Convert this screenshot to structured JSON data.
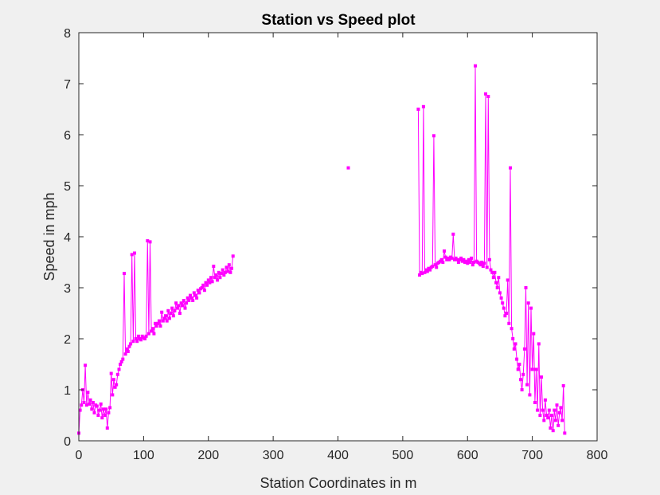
{
  "chart_data": {
    "type": "line",
    "title": "Station vs Speed plot",
    "xlabel": "Station Coordinates in m",
    "ylabel": "Speed in mph",
    "xlim": [
      0,
      800
    ],
    "ylim": [
      0,
      8
    ],
    "xticks": [
      0,
      100,
      200,
      300,
      400,
      500,
      600,
      700,
      800
    ],
    "yticks": [
      0,
      1,
      2,
      3,
      4,
      5,
      6,
      7,
      8
    ],
    "grid": false,
    "legend": "none",
    "marker": "square",
    "series_color": "#ff00ff",
    "axes_color": "#262626",
    "background": "#f0f0f0",
    "plot_background": "#ffffff",
    "series": [
      {
        "x": [
          0,
          2,
          4,
          6,
          8,
          10,
          12,
          14,
          16,
          18,
          20,
          22,
          24,
          26,
          28,
          30,
          32,
          34,
          36,
          38,
          40,
          42,
          44,
          46,
          48,
          50,
          52,
          54,
          56,
          58,
          60,
          62,
          64,
          66,
          68,
          70,
          72,
          74,
          76,
          78,
          80,
          82,
          84,
          86,
          88,
          90,
          92,
          94,
          96,
          98,
          100,
          102,
          104,
          106,
          108,
          110,
          112,
          114,
          116,
          118,
          120,
          122,
          124,
          126,
          128,
          130,
          132,
          134,
          136,
          138,
          140,
          142,
          144,
          146,
          148,
          150,
          152,
          154,
          156,
          158,
          160,
          162,
          164,
          166,
          168,
          170,
          172,
          174,
          176,
          178,
          180,
          182,
          184,
          186,
          188,
          190,
          192,
          194,
          196,
          198,
          200,
          202,
          204,
          206,
          208,
          210,
          212,
          214,
          216,
          218,
          220,
          222,
          224,
          226,
          228,
          230,
          232,
          234,
          236,
          238
        ],
        "y": [
          0.15,
          0.6,
          0.7,
          1.0,
          0.75,
          1.48,
          0.7,
          0.95,
          0.72,
          0.8,
          0.62,
          0.75,
          0.55,
          0.7,
          0.68,
          0.5,
          0.6,
          0.72,
          0.45,
          0.62,
          0.5,
          0.62,
          0.25,
          0.55,
          0.65,
          1.32,
          0.9,
          1.2,
          1.05,
          1.1,
          1.3,
          1.4,
          1.5,
          1.55,
          1.6,
          3.28,
          1.7,
          1.8,
          1.75,
          1.85,
          1.9,
          3.65,
          1.95,
          3.68,
          2.0,
          1.95,
          2.05,
          2.0,
          1.98,
          2.05,
          2.02,
          2.0,
          2.05,
          3.92,
          2.1,
          3.9,
          2.15,
          2.2,
          2.1,
          2.3,
          2.25,
          2.3,
          2.35,
          2.25,
          2.52,
          2.35,
          2.4,
          2.45,
          2.35,
          2.55,
          2.4,
          2.5,
          2.6,
          2.45,
          2.55,
          2.7,
          2.6,
          2.65,
          2.5,
          2.7,
          2.65,
          2.75,
          2.6,
          2.7,
          2.8,
          2.75,
          2.85,
          2.8,
          2.75,
          2.9,
          2.85,
          2.8,
          2.95,
          2.9,
          2.98,
          3.0,
          3.05,
          2.95,
          3.1,
          3.05,
          3.15,
          3.1,
          3.2,
          3.12,
          3.42,
          3.2,
          3.25,
          3.15,
          3.3,
          3.2,
          3.28,
          3.35,
          3.25,
          3.3,
          3.4,
          3.32,
          3.45,
          3.3,
          3.38,
          3.62
        ]
      },
      {
        "x": [
          416
        ],
        "y": [
          5.35
        ]
      },
      {
        "x": [
          524,
          526,
          528,
          530,
          532,
          534,
          536,
          538,
          540,
          542,
          544,
          546,
          548,
          550,
          552,
          554,
          556,
          558,
          560,
          562,
          564,
          566,
          568,
          570,
          572,
          574,
          576,
          578,
          580,
          582,
          584,
          586,
          588,
          590,
          592,
          594,
          596,
          598,
          600,
          602,
          604,
          606,
          608,
          610,
          612,
          614,
          616,
          618,
          620,
          622,
          624,
          626,
          628,
          630,
          632,
          634,
          636,
          638,
          640,
          642,
          644,
          646,
          648,
          650,
          652,
          654,
          656,
          658,
          660,
          662,
          664,
          666,
          668,
          670,
          672,
          674,
          676,
          678,
          680,
          682,
          684,
          686,
          688,
          690,
          692,
          694,
          696,
          698,
          700,
          702,
          704,
          706,
          708,
          710,
          712,
          714,
          716,
          718,
          720,
          722,
          724,
          726,
          728,
          730,
          732,
          734,
          736,
          738,
          740,
          742,
          744,
          746,
          748,
          750
        ],
        "y": [
          6.5,
          3.25,
          3.3,
          3.28,
          6.55,
          3.3,
          3.35,
          3.32,
          3.38,
          3.35,
          3.4,
          3.42,
          5.98,
          3.45,
          3.4,
          3.48,
          3.5,
          3.52,
          3.55,
          3.5,
          3.72,
          3.6,
          3.55,
          3.58,
          3.55,
          3.6,
          3.58,
          4.05,
          3.55,
          3.58,
          3.55,
          3.5,
          3.55,
          3.58,
          3.52,
          3.55,
          3.5,
          3.52,
          3.48,
          3.55,
          3.5,
          3.58,
          3.45,
          3.5,
          7.35,
          3.52,
          3.5,
          3.48,
          3.45,
          3.5,
          3.42,
          3.48,
          6.8,
          3.4,
          6.75,
          3.55,
          3.35,
          3.3,
          3.2,
          3.3,
          3.1,
          3.0,
          3.2,
          2.9,
          2.8,
          2.7,
          2.6,
          2.45,
          2.5,
          3.15,
          2.3,
          5.35,
          2.2,
          2.0,
          1.8,
          1.9,
          1.6,
          1.4,
          1.5,
          1.2,
          1.0,
          1.3,
          1.8,
          3.0,
          1.1,
          2.7,
          0.9,
          2.6,
          1.4,
          2.1,
          0.75,
          1.4,
          0.6,
          1.9,
          0.5,
          1.25,
          0.6,
          0.4,
          0.8,
          0.5,
          0.45,
          0.6,
          0.25,
          0.5,
          0.2,
          0.6,
          0.4,
          0.7,
          0.3,
          0.55,
          0.65,
          0.4,
          1.08,
          0.15
        ]
      }
    ]
  }
}
